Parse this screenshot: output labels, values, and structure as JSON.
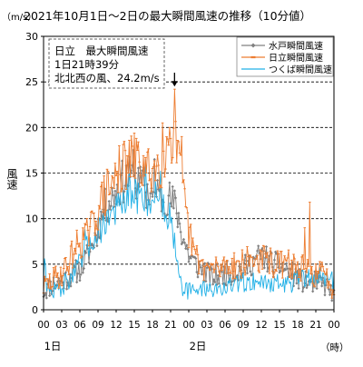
{
  "chart_data": {
    "type": "line",
    "title": "2021年10月1日～2日の最大瞬間風速の推移（10分値）",
    "ylabel_unit": "（m/s）",
    "ylabel": "風速",
    "xlabel_unit": "（時）",
    "ylim": [
      0,
      30
    ],
    "xlim_hours": [
      0,
      48
    ],
    "yticks": [
      "0",
      "5",
      "10",
      "15",
      "20",
      "25",
      "30"
    ],
    "gridlines_dashed": [
      5,
      10,
      15,
      20,
      25,
      30
    ],
    "xticks": [
      {
        "h": 0,
        "label": "00"
      },
      {
        "h": 3,
        "label": "03"
      },
      {
        "h": 6,
        "label": "06"
      },
      {
        "h": 9,
        "label": "09"
      },
      {
        "h": 12,
        "label": "12"
      },
      {
        "h": 15,
        "label": "15"
      },
      {
        "h": 18,
        "label": "18"
      },
      {
        "h": 21,
        "label": "21"
      },
      {
        "h": 24,
        "label": "00"
      },
      {
        "h": 27,
        "label": "03"
      },
      {
        "h": 30,
        "label": "06"
      },
      {
        "h": 33,
        "label": "09"
      },
      {
        "h": 36,
        "label": "12"
      },
      {
        "h": 39,
        "label": "15"
      },
      {
        "h": 42,
        "label": "18"
      },
      {
        "h": 45,
        "label": "21"
      },
      {
        "h": 48,
        "label": "00"
      }
    ],
    "day_labels": [
      {
        "h": 1.5,
        "label": "1日"
      },
      {
        "h": 25.5,
        "label": "2日"
      }
    ],
    "legend_position": "top-right",
    "annotation": {
      "lines": [
        "日立　最大瞬間風速",
        "1日21時39分",
        "北北西の風、24.2m/s"
      ],
      "arrow_hour": 21.65,
      "arrow_value": 24.2
    },
    "interval_minutes": 10,
    "series": [
      {
        "name": "水戸瞬間風速",
        "color": "#808080",
        "marker": "diamond",
        "anchors": [
          [
            0,
            2.0
          ],
          [
            1,
            2.5
          ],
          [
            2,
            3.0
          ],
          [
            3,
            3.2
          ],
          [
            4,
            3.5
          ],
          [
            5,
            4.0
          ],
          [
            6,
            4.5
          ],
          [
            7,
            5.5
          ],
          [
            8,
            7.0
          ],
          [
            9,
            9.0
          ],
          [
            10,
            11.0
          ],
          [
            11,
            12.0
          ],
          [
            12,
            13.0
          ],
          [
            13,
            14.0
          ],
          [
            14,
            14.5
          ],
          [
            15,
            14.0
          ],
          [
            16,
            13.5
          ],
          [
            17,
            13.0
          ],
          [
            18,
            12.5
          ],
          [
            19,
            12.0
          ],
          [
            20,
            12.5
          ],
          [
            21,
            12.0
          ],
          [
            22,
            11.0
          ],
          [
            23,
            8.0
          ],
          [
            24,
            6.0
          ],
          [
            25,
            5.0
          ],
          [
            26,
            4.5
          ],
          [
            27,
            4.0
          ],
          [
            28,
            3.5
          ],
          [
            29,
            3.8
          ],
          [
            30,
            4.0
          ],
          [
            31,
            4.0
          ],
          [
            32,
            4.2
          ],
          [
            33,
            4.5
          ],
          [
            34,
            5.0
          ],
          [
            35,
            5.5
          ],
          [
            36,
            6.0
          ],
          [
            37,
            5.5
          ],
          [
            38,
            5.0
          ],
          [
            39,
            4.8
          ],
          [
            40,
            4.5
          ],
          [
            41,
            4.0
          ],
          [
            42,
            3.5
          ],
          [
            43,
            3.0
          ],
          [
            44,
            3.0
          ],
          [
            45,
            3.0
          ],
          [
            46,
            2.8
          ],
          [
            47,
            2.5
          ],
          [
            48,
            1.5
          ]
        ],
        "spikes": [
          [
            14.8,
            17.5
          ],
          [
            18.3,
            16.5
          ],
          [
            18.8,
            14.2
          ],
          [
            16.5,
            15.6
          ]
        ],
        "amplitude": 2.2,
        "seed": 11
      },
      {
        "name": "日立瞬間風速",
        "color": "#ed7d31",
        "marker": "dash",
        "anchors": [
          [
            0,
            2.5
          ],
          [
            1,
            3.0
          ],
          [
            2,
            3.5
          ],
          [
            3,
            4.0
          ],
          [
            4,
            5.0
          ],
          [
            5,
            6.5
          ],
          [
            6,
            7.5
          ],
          [
            7,
            8.0
          ],
          [
            8,
            9.0
          ],
          [
            9,
            11.0
          ],
          [
            10,
            12.5
          ],
          [
            11,
            13.5
          ],
          [
            12,
            14.5
          ],
          [
            13,
            15.5
          ],
          [
            14,
            16.0
          ],
          [
            15,
            16.5
          ],
          [
            16,
            16.0
          ],
          [
            17,
            15.0
          ],
          [
            18,
            15.5
          ],
          [
            19,
            15.8
          ],
          [
            20,
            17.0
          ],
          [
            21,
            19.5
          ],
          [
            22,
            17.5
          ],
          [
            23,
            13.0
          ],
          [
            24,
            8.5
          ],
          [
            25,
            6.0
          ],
          [
            26,
            5.0
          ],
          [
            27,
            4.5
          ],
          [
            28,
            4.5
          ],
          [
            29,
            4.5
          ],
          [
            30,
            5.0
          ],
          [
            31,
            5.0
          ],
          [
            32,
            5.0
          ],
          [
            33,
            5.0
          ],
          [
            34,
            5.5
          ],
          [
            35,
            5.5
          ],
          [
            36,
            5.5
          ],
          [
            37,
            5.5
          ],
          [
            38,
            5.0
          ],
          [
            39,
            5.0
          ],
          [
            40,
            5.0
          ],
          [
            41,
            5.0
          ],
          [
            42,
            4.5
          ],
          [
            43,
            4.5
          ],
          [
            44,
            4.0
          ],
          [
            45,
            4.0
          ],
          [
            46,
            4.0
          ],
          [
            47,
            3.5
          ],
          [
            48,
            2.0
          ]
        ],
        "spikes": [
          [
            21.65,
            24.2
          ],
          [
            12.5,
            18.0
          ],
          [
            15.3,
            18.8
          ],
          [
            19.6,
            20.5
          ],
          [
            22.8,
            19.0
          ],
          [
            20.8,
            20.0
          ],
          [
            44.0,
            11.8
          ],
          [
            43.2,
            9.0
          ]
        ],
        "amplitude": 2.5,
        "seed": 29
      },
      {
        "name": "つくば瞬間風速",
        "color": "#21b0e6",
        "marker": "none",
        "anchors": [
          [
            0,
            3.5
          ],
          [
            0.6,
            2.0
          ],
          [
            1,
            1.8
          ],
          [
            2,
            2.2
          ],
          [
            3,
            2.5
          ],
          [
            4,
            3.2
          ],
          [
            5,
            4.0
          ],
          [
            6,
            5.0
          ],
          [
            7,
            6.5
          ],
          [
            8,
            7.5
          ],
          [
            9,
            8.5
          ],
          [
            10,
            9.5
          ],
          [
            11,
            10.5
          ],
          [
            12,
            11.0
          ],
          [
            13,
            11.5
          ],
          [
            14,
            12.0
          ],
          [
            15,
            12.5
          ],
          [
            16,
            12.5
          ],
          [
            17,
            12.0
          ],
          [
            18,
            12.0
          ],
          [
            19,
            13.0
          ],
          [
            20,
            11.0
          ],
          [
            21,
            10.0
          ],
          [
            21.6,
            8.0
          ],
          [
            22.3,
            5.0
          ],
          [
            23,
            2.5
          ],
          [
            24,
            2.0
          ],
          [
            25,
            2.0
          ],
          [
            26,
            2.5
          ],
          [
            27,
            2.5
          ],
          [
            28,
            2.2
          ],
          [
            29,
            2.2
          ],
          [
            30,
            2.5
          ],
          [
            31,
            2.5
          ],
          [
            32,
            2.8
          ],
          [
            33,
            3.0
          ],
          [
            34,
            3.0
          ],
          [
            35,
            3.2
          ],
          [
            36,
            3.0
          ],
          [
            37,
            3.0
          ],
          [
            38,
            3.0
          ],
          [
            39,
            2.8
          ],
          [
            40,
            2.8
          ],
          [
            41,
            3.0
          ],
          [
            42,
            3.2
          ],
          [
            43,
            3.5
          ],
          [
            44,
            3.5
          ],
          [
            45,
            3.5
          ],
          [
            46,
            3.5
          ],
          [
            47,
            3.5
          ],
          [
            48,
            3.0
          ]
        ],
        "spikes": [
          [
            16.8,
            16.5
          ],
          [
            14.2,
            15.0
          ],
          [
            19.3,
            15.2
          ],
          [
            0.1,
            5.6
          ],
          [
            0.3,
            4.8
          ],
          [
            6.8,
            8.8
          ]
        ],
        "amplitude": 2.0,
        "seed": 47
      }
    ]
  }
}
